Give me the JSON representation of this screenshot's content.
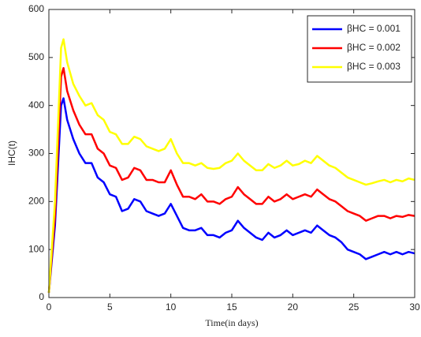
{
  "chart_data": {
    "type": "line",
    "xlabel": "Time(in days)",
    "ylabel": "IHC(t)",
    "x": [
      0,
      0.5,
      1,
      1.2,
      1.5,
      2,
      2.5,
      3,
      3.5,
      4,
      4.5,
      5,
      5.5,
      6,
      6.5,
      7,
      7.5,
      8,
      8.5,
      9,
      9.5,
      10,
      10.5,
      11,
      11.5,
      12,
      12.5,
      13,
      13.5,
      14,
      14.5,
      15,
      15.5,
      16,
      16.5,
      17,
      17.5,
      18,
      18.5,
      19,
      19.5,
      20,
      20.5,
      21,
      21.5,
      22,
      22.5,
      23,
      23.5,
      24,
      24.5,
      25,
      25.5,
      26,
      26.5,
      27,
      27.5,
      28,
      28.5,
      29,
      29.5,
      30
    ],
    "series": [
      {
        "name": "βHC = 0.001",
        "color": "#0000ff",
        "values": [
          10,
          150,
          400,
          415,
          370,
          330,
          300,
          280,
          280,
          250,
          240,
          215,
          210,
          180,
          185,
          205,
          200,
          180,
          175,
          170,
          175,
          195,
          170,
          145,
          140,
          140,
          145,
          130,
          130,
          125,
          135,
          140,
          160,
          145,
          135,
          125,
          120,
          135,
          125,
          130,
          140,
          130,
          135,
          140,
          135,
          150,
          140,
          130,
          125,
          115,
          100,
          95,
          90,
          80,
          85,
          90,
          95,
          90,
          95,
          90,
          95,
          92
        ]
      },
      {
        "name": "βHC = 0.002",
        "color": "#ff0000",
        "values": [
          10,
          170,
          460,
          478,
          430,
          390,
          360,
          340,
          340,
          310,
          300,
          275,
          270,
          245,
          250,
          270,
          265,
          245,
          245,
          240,
          240,
          265,
          235,
          210,
          210,
          205,
          215,
          200,
          200,
          195,
          205,
          210,
          230,
          215,
          205,
          195,
          195,
          210,
          200,
          205,
          215,
          205,
          210,
          215,
          210,
          225,
          215,
          205,
          200,
          190,
          180,
          175,
          170,
          160,
          165,
          170,
          170,
          165,
          170,
          168,
          172,
          170
        ]
      },
      {
        "name": "βHC = 0.003",
        "color": "#ffff00",
        "values": [
          10,
          200,
          520,
          538,
          490,
          445,
          420,
          400,
          405,
          380,
          370,
          345,
          340,
          320,
          320,
          335,
          330,
          315,
          310,
          305,
          310,
          330,
          300,
          280,
          280,
          275,
          280,
          270,
          268,
          270,
          280,
          285,
          300,
          285,
          275,
          265,
          265,
          278,
          270,
          275,
          285,
          275,
          278,
          285,
          280,
          295,
          285,
          275,
          270,
          260,
          250,
          245,
          240,
          235,
          238,
          242,
          245,
          240,
          245,
          242,
          248,
          245
        ]
      }
    ],
    "xlim": [
      0,
      30
    ],
    "xticks": [
      0,
      5,
      10,
      15,
      20,
      25,
      30
    ],
    "ylim": [
      0,
      600
    ],
    "yticks": [
      0,
      100,
      200,
      300,
      400,
      500,
      600
    ],
    "legend": "northeast"
  }
}
